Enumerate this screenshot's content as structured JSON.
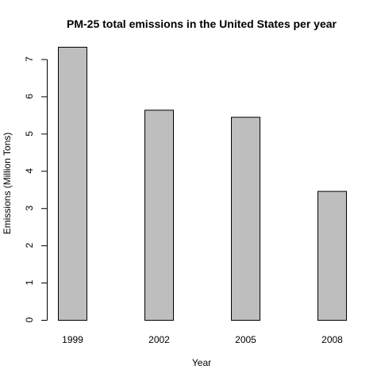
{
  "chart_data": {
    "type": "bar",
    "title": "PM-25 total emissions in the United States per year",
    "xlabel": "Year",
    "ylabel": "Emissions (Million Tons)",
    "categories": [
      "1999",
      "2002",
      "2005",
      "2008"
    ],
    "values": [
      7.33,
      5.64,
      5.45,
      3.46
    ],
    "ylim": [
      0,
      7.33
    ],
    "yticks": [
      0,
      1,
      2,
      3,
      4,
      5,
      6,
      7
    ],
    "grid": false,
    "legend": "none",
    "colors": {
      "bar_fill": "#bebebe",
      "bar_stroke": "#000000"
    }
  }
}
